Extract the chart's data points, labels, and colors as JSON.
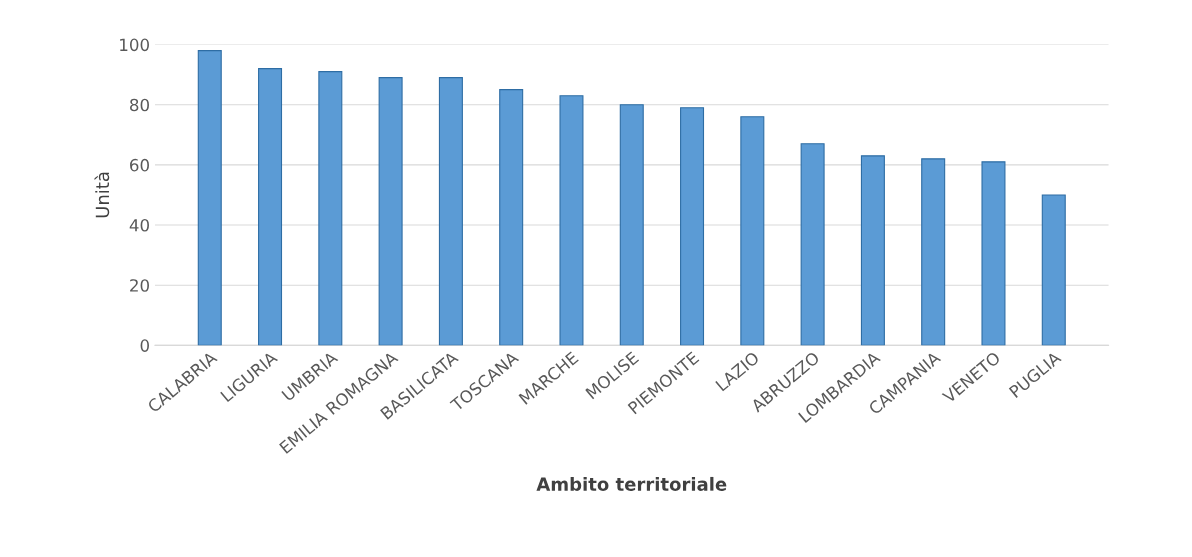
{
  "chart_data": {
    "type": "bar",
    "xlabel": "Ambito territoriale",
    "ylabel": "Unità",
    "categories": [
      "CALABRIA",
      "LIGURIA",
      "UMBRIA",
      "EMILIA ROMAGNA",
      "BASILICATA",
      "TOSCANA",
      "MARCHE",
      "MOLISE",
      "PIEMONTE",
      "LAZIO",
      "ABRUZZO",
      "LOMBARDIA",
      "CAMPANIA",
      "VENETO",
      "PUGLIA"
    ],
    "values": [
      98,
      92,
      91,
      89,
      89,
      85,
      83,
      80,
      79,
      76,
      67,
      63,
      62,
      61,
      50
    ],
    "color": "#5b9bd5",
    "ylim": [
      0,
      100
    ],
    "yticks": [
      0,
      20,
      40,
      60,
      80,
      100
    ],
    "grid": "y"
  }
}
